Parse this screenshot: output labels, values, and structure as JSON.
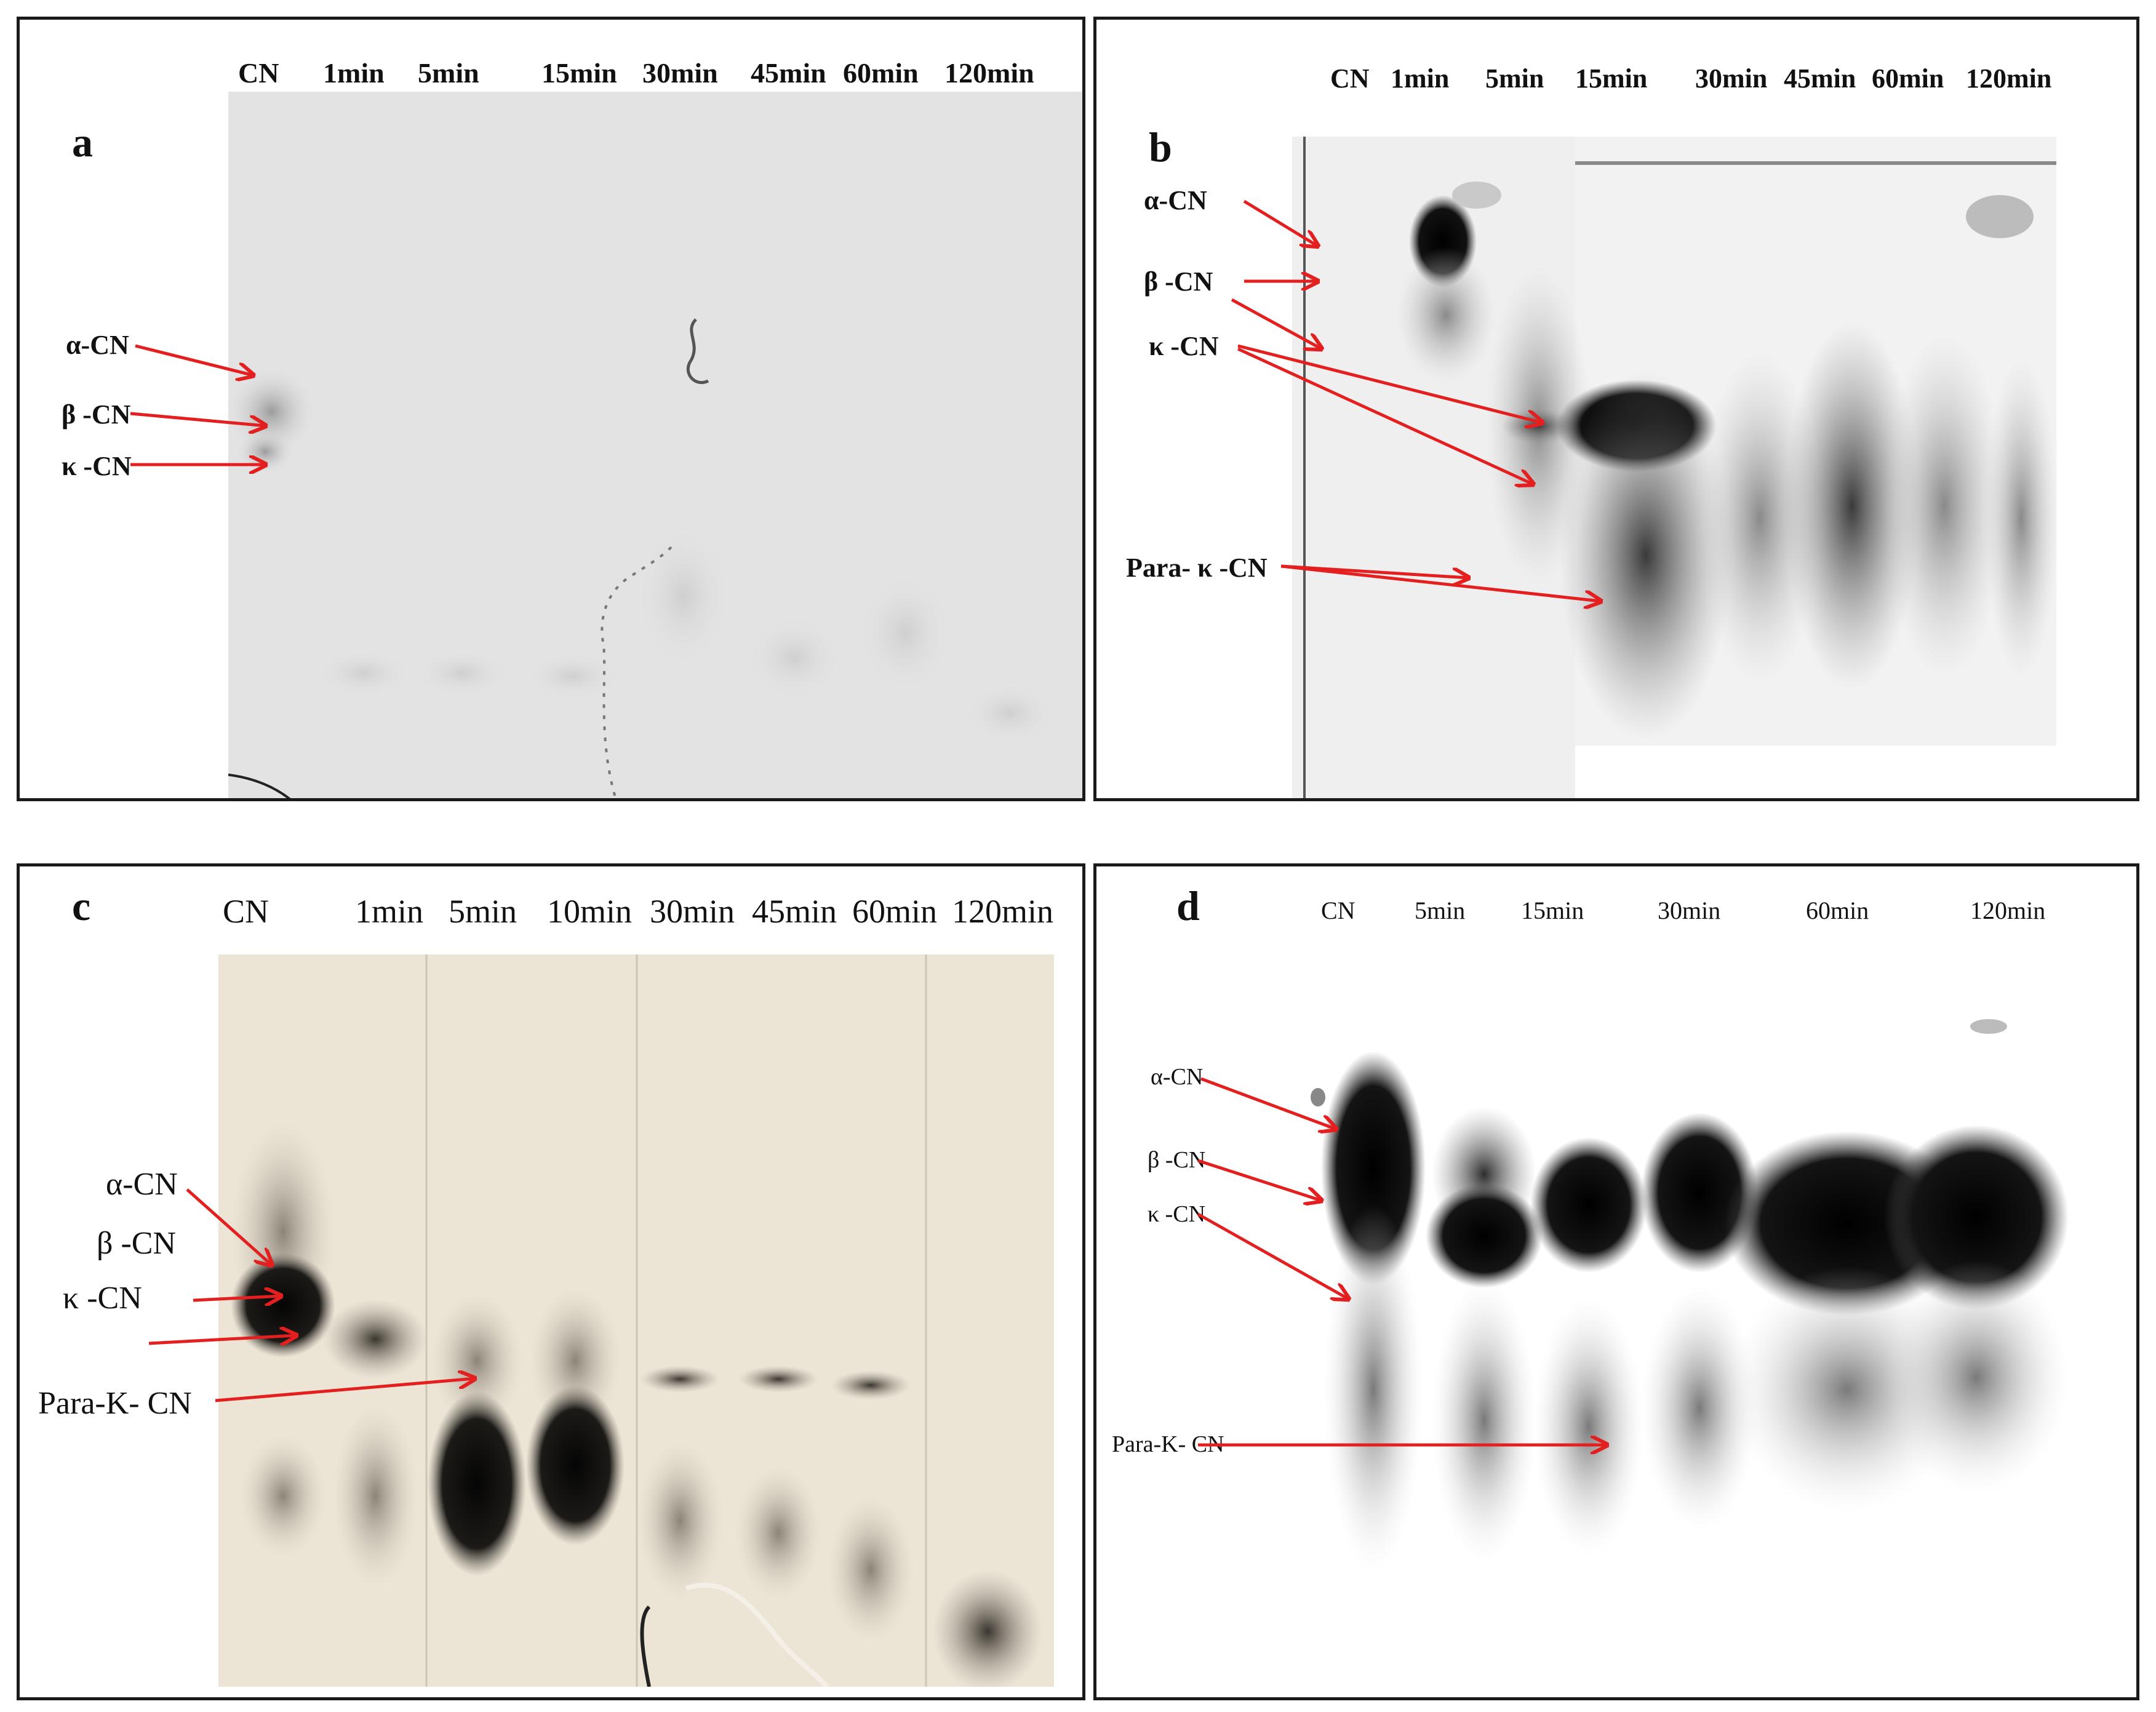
{
  "panels": {
    "a": {
      "letter": "a",
      "lanes": [
        "CN",
        "1min",
        "5min",
        "15min",
        "30min",
        "45min",
        "60min",
        "120min"
      ],
      "bands": [
        "α-CN",
        "β -CN",
        "κ -CN"
      ]
    },
    "b": {
      "letter": "b",
      "lanes": [
        "CN",
        "1min",
        "5min",
        "15min",
        "30min",
        "45min",
        "60min",
        "120min"
      ],
      "bands": [
        "α-CN",
        "β -CN",
        "κ -CN",
        "Para- κ -CN"
      ]
    },
    "c": {
      "letter": "c",
      "lanes": [
        "CN",
        "1min",
        "5min",
        "10min",
        "30min",
        "45min",
        "60min",
        "120min"
      ],
      "bands": [
        "α-CN",
        "β -CN",
        "κ -CN",
        "Para-K- CN"
      ]
    },
    "d": {
      "letter": "d",
      "lanes": [
        "CN",
        "5min",
        "15min",
        "30min",
        "60min",
        "120min"
      ],
      "bands": [
        "α-CN",
        "β -CN",
        "κ -CN",
        "Para-K- CN"
      ]
    }
  },
  "colors": {
    "arrow": "#e41f1f",
    "border": "#1a1a1a"
  }
}
